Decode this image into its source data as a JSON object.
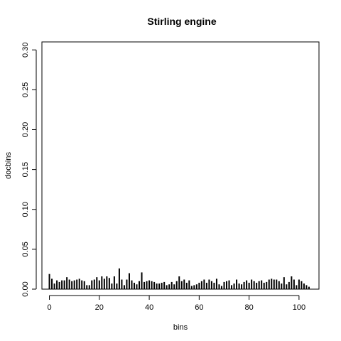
{
  "chart_data": {
    "type": "bar",
    "title": "Stirling engine",
    "xlabel": "bins",
    "ylabel": "docbins",
    "xlim": [
      -3,
      108
    ],
    "ylim": [
      0,
      0.31
    ],
    "x_ticks": [
      0,
      20,
      40,
      60,
      80,
      100
    ],
    "x_tick_labels": [
      "0",
      "20",
      "40",
      "60",
      "80",
      "100"
    ],
    "y_ticks": [
      0.0,
      0.05,
      0.1,
      0.15,
      0.2,
      0.25,
      0.3
    ],
    "y_tick_labels": [
      "0.00",
      "0.05",
      "0.10",
      "0.15",
      "0.20",
      "0.25",
      "0.30"
    ],
    "grid": false,
    "x": [
      0,
      1,
      2,
      3,
      4,
      5,
      6,
      7,
      8,
      9,
      10,
      11,
      12,
      13,
      14,
      15,
      16,
      17,
      18,
      19,
      20,
      21,
      22,
      23,
      24,
      25,
      26,
      27,
      28,
      29,
      30,
      31,
      32,
      33,
      34,
      35,
      36,
      37,
      38,
      39,
      40,
      41,
      42,
      43,
      44,
      45,
      46,
      47,
      48,
      49,
      50,
      51,
      52,
      53,
      54,
      55,
      56,
      57,
      58,
      59,
      60,
      61,
      62,
      63,
      64,
      65,
      66,
      67,
      68,
      69,
      70,
      71,
      72,
      73,
      74,
      75,
      76,
      77,
      78,
      79,
      80,
      81,
      82,
      83,
      84,
      85,
      86,
      87,
      88,
      89,
      90,
      91,
      92,
      93,
      94,
      95,
      96,
      97,
      98,
      99,
      100,
      101,
      102,
      103,
      104
    ],
    "values": [
      0.019,
      0.013,
      0.007,
      0.011,
      0.009,
      0.011,
      0.011,
      0.015,
      0.012,
      0.01,
      0.011,
      0.012,
      0.013,
      0.011,
      0.01,
      0.005,
      0.005,
      0.011,
      0.012,
      0.015,
      0.011,
      0.016,
      0.013,
      0.016,
      0.014,
      0.007,
      0.016,
      0.007,
      0.026,
      0.012,
      0.005,
      0.012,
      0.02,
      0.011,
      0.008,
      0.006,
      0.01,
      0.021,
      0.009,
      0.01,
      0.011,
      0.01,
      0.009,
      0.007,
      0.007,
      0.008,
      0.009,
      0.005,
      0.006,
      0.009,
      0.006,
      0.01,
      0.016,
      0.01,
      0.012,
      0.008,
      0.011,
      0.004,
      0.005,
      0.006,
      0.008,
      0.01,
      0.012,
      0.008,
      0.012,
      0.01,
      0.008,
      0.013,
      0.006,
      0.004,
      0.009,
      0.01,
      0.011,
      0.005,
      0.007,
      0.012,
      0.007,
      0.006,
      0.009,
      0.011,
      0.008,
      0.012,
      0.01,
      0.008,
      0.01,
      0.011,
      0.008,
      0.009,
      0.012,
      0.013,
      0.012,
      0.012,
      0.01,
      0.007,
      0.015,
      0.006,
      0.009,
      0.016,
      0.012,
      0.005,
      0.012,
      0.01,
      0.007,
      0.005,
      0.003
    ]
  }
}
